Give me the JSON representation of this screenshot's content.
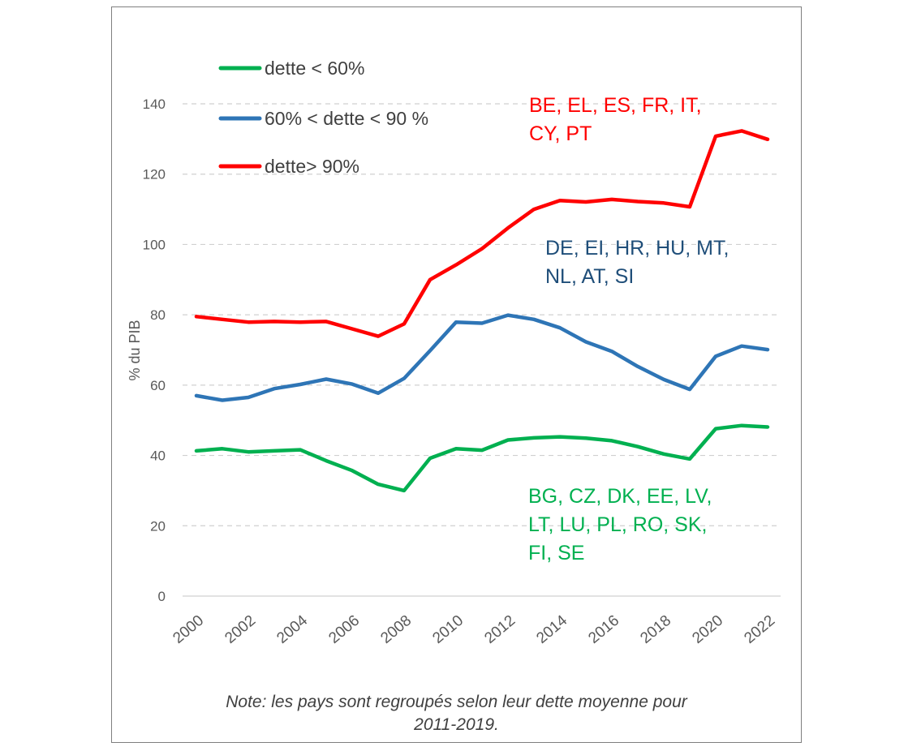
{
  "chart_data": {
    "type": "line",
    "title": "",
    "xlabel": "",
    "ylabel": "% du PIB",
    "ylim": [
      0,
      140
    ],
    "yticks": [
      0,
      20,
      40,
      60,
      80,
      100,
      120,
      140
    ],
    "x": [
      2000,
      2001,
      2002,
      2003,
      2004,
      2005,
      2006,
      2007,
      2008,
      2009,
      2010,
      2011,
      2012,
      2013,
      2014,
      2015,
      2016,
      2017,
      2018,
      2019,
      2020,
      2021,
      2022
    ],
    "xticks": [
      "2000",
      "2002",
      "2004",
      "2006",
      "2008",
      "2010",
      "2012",
      "2014",
      "2016",
      "2018",
      "2020",
      "2022"
    ],
    "grid": "horizontal dashed",
    "legend_position": "top-left",
    "series": [
      {
        "name": "dette < 60%",
        "color": "#00b050",
        "values": [
          41.3,
          41.9,
          41.0,
          41.3,
          41.6,
          38.5,
          35.7,
          31.8,
          30.0,
          39.2,
          41.9,
          41.5,
          44.4,
          45.0,
          45.3,
          44.9,
          44.2,
          42.5,
          40.4,
          39.0,
          47.6,
          48.5,
          48.1
        ]
      },
      {
        "name": "60% < dette < 90 %",
        "color": "#2e75b6",
        "values": [
          57.0,
          55.7,
          56.5,
          59.0,
          60.2,
          61.7,
          60.3,
          57.7,
          61.9,
          69.8,
          77.9,
          77.6,
          79.9,
          78.7,
          76.3,
          72.3,
          69.6,
          65.3,
          61.6,
          58.8,
          68.2,
          71.1,
          70.1
        ]
      },
      {
        "name": "dette> 90%",
        "color": "#ff0000",
        "values": [
          79.5,
          78.7,
          77.9,
          78.1,
          77.9,
          78.1,
          76.0,
          73.9,
          77.4,
          90.0,
          94.2,
          98.8,
          104.7,
          110.0,
          112.5,
          112.1,
          112.8,
          112.2,
          111.8,
          110.7,
          130.8,
          132.3,
          129.9
        ]
      }
    ],
    "annotations": [
      {
        "lines": [
          "BE, EL, ES, FR, IT,",
          "CY, PT"
        ],
        "color": "#ff0000"
      },
      {
        "lines": [
          "DE, EI, HR, HU, MT,",
          "NL, AT, SI"
        ],
        "color": "#1f4e79"
      },
      {
        "lines": [
          "BG, CZ, DK, EE, LV,",
          "LT, LU, PL, RO, SK,",
          "FI, SE"
        ],
        "color": "#00b050"
      }
    ],
    "note": [
      "Note: les pays sont regroupés selon leur dette moyenne pour",
      "2011-2019."
    ]
  }
}
